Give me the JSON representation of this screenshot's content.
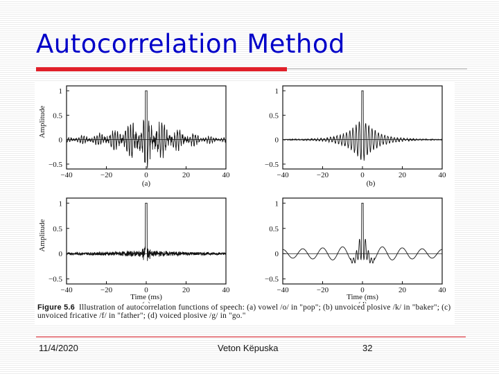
{
  "slide": {
    "title": "Autocorrelation Method",
    "footer": {
      "date": "11/4/2020",
      "author": "Veton Këpuska",
      "page": "32"
    }
  },
  "figure": {
    "caption_label": "Figure 5.6",
    "caption_text": "Illustration of autocorrelation functions of speech: (a) vowel /o/ in \"pop\"; (b) unvoiced plosive /k/ in \"baker\"; (c) unvoiced fricative /f/ in \"father\"; (d) voiced plosive /g/ in \"go.\""
  },
  "chart_data": [
    {
      "type": "line",
      "panel_label": "(a)",
      "xlabel": "",
      "ylabel": "Amplitude",
      "xlim": [
        -40,
        40
      ],
      "ylim": [
        -0.6,
        1.1
      ],
      "xticks": [
        "−40",
        "−20",
        "0",
        "20",
        "40"
      ],
      "yticks": [
        "1",
        "0.5",
        "0",
        "−0.5"
      ],
      "series": [
        {
          "style": "vowel-periodic",
          "peak": 1.0,
          "lag0": 0,
          "envelope_halfwidth_ms": 30,
          "pitch_period_ms": 8
        }
      ]
    },
    {
      "type": "line",
      "panel_label": "(b)",
      "xlabel": "",
      "ylabel": "",
      "xlim": [
        -40,
        40
      ],
      "ylim": [
        -0.6,
        1.1
      ],
      "xticks": [
        "−40",
        "−20",
        "0",
        "20",
        "40"
      ],
      "yticks": [
        "1",
        "0.5",
        "0",
        "−0.5"
      ],
      "series": [
        {
          "style": "unvoiced-plosive",
          "peak": 1.0,
          "lag0": 0,
          "envelope_halfwidth_ms": 18
        }
      ]
    },
    {
      "type": "line",
      "panel_label": "(c)",
      "xlabel": "Time (ms)",
      "ylabel": "Amplitude",
      "xlim": [
        -40,
        40
      ],
      "ylim": [
        -0.6,
        1.1
      ],
      "xticks": [
        "−40",
        "−20",
        "0",
        "20",
        "40"
      ],
      "yticks": [
        "1",
        "0.5",
        "0",
        "−0.5"
      ],
      "series": [
        {
          "style": "fricative-noise",
          "peak": 1.0,
          "lag0": 0,
          "envelope_halfwidth_ms": 8
        }
      ]
    },
    {
      "type": "line",
      "panel_label": "(d)",
      "xlabel": "Time (ms)",
      "ylabel": "",
      "xlim": [
        -40,
        40
      ],
      "ylim": [
        -0.6,
        1.1
      ],
      "xticks": [
        "−40",
        "−20",
        "0",
        "20",
        "40"
      ],
      "yticks": [
        "1",
        "0.5",
        "0",
        "−0.5"
      ],
      "series": [
        {
          "style": "voiced-plosive",
          "peak": 1.0,
          "lag0": 0,
          "low_freq_period_ms": 10
        }
      ]
    }
  ]
}
